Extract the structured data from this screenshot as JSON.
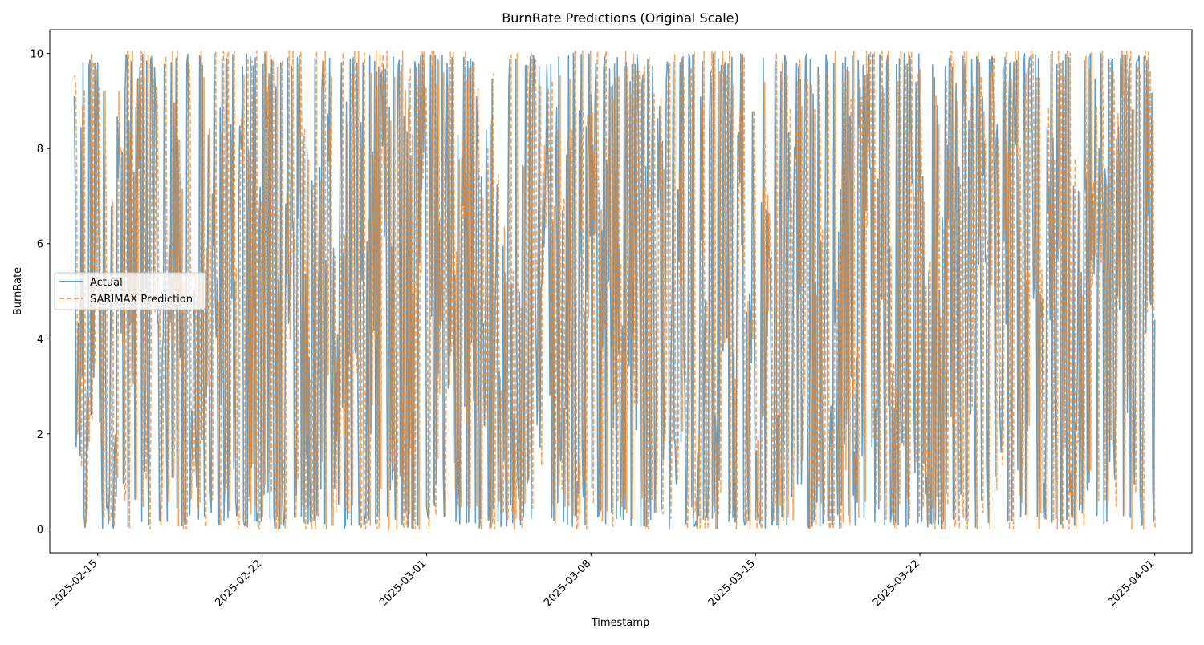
{
  "chart_data": {
    "type": "line",
    "title": "BurnRate Predictions (Original Scale)",
    "xlabel": "Timestamp",
    "ylabel": "BurnRate",
    "x_range": [
      "2025-02-14T00:00",
      "2025-04-01T00:00"
    ],
    "xlim": [
      "2025-02-12T23:00",
      "2025-04-02T14:00"
    ],
    "ylim": [
      -0.5,
      10.5
    ],
    "y_ticks": [
      0,
      2,
      4,
      6,
      8,
      10
    ],
    "x_ticks": [
      {
        "date": "2025-02-15",
        "label": "2025-02-15"
      },
      {
        "date": "2025-02-22",
        "label": "2025-02-22"
      },
      {
        "date": "2025-03-01",
        "label": "2025-03-01"
      },
      {
        "date": "2025-03-08",
        "label": "2025-03-08"
      },
      {
        "date": "2025-03-15",
        "label": "2025-03-15"
      },
      {
        "date": "2025-03-22",
        "label": "2025-03-22"
      },
      {
        "date": "2025-04-01",
        "label": "2025-04-01"
      }
    ],
    "sampling": "hourly",
    "value_min": 0,
    "value_max": 10,
    "grid": false,
    "legend_position": "center-left",
    "series": [
      {
        "name": "Actual",
        "color": "#1f77b4",
        "style": "solid",
        "opacity": 0.7
      },
      {
        "name": "SARIMAX Prediction",
        "color": "#ff7f0e",
        "style": "dashed",
        "opacity": 0.7
      }
    ]
  }
}
